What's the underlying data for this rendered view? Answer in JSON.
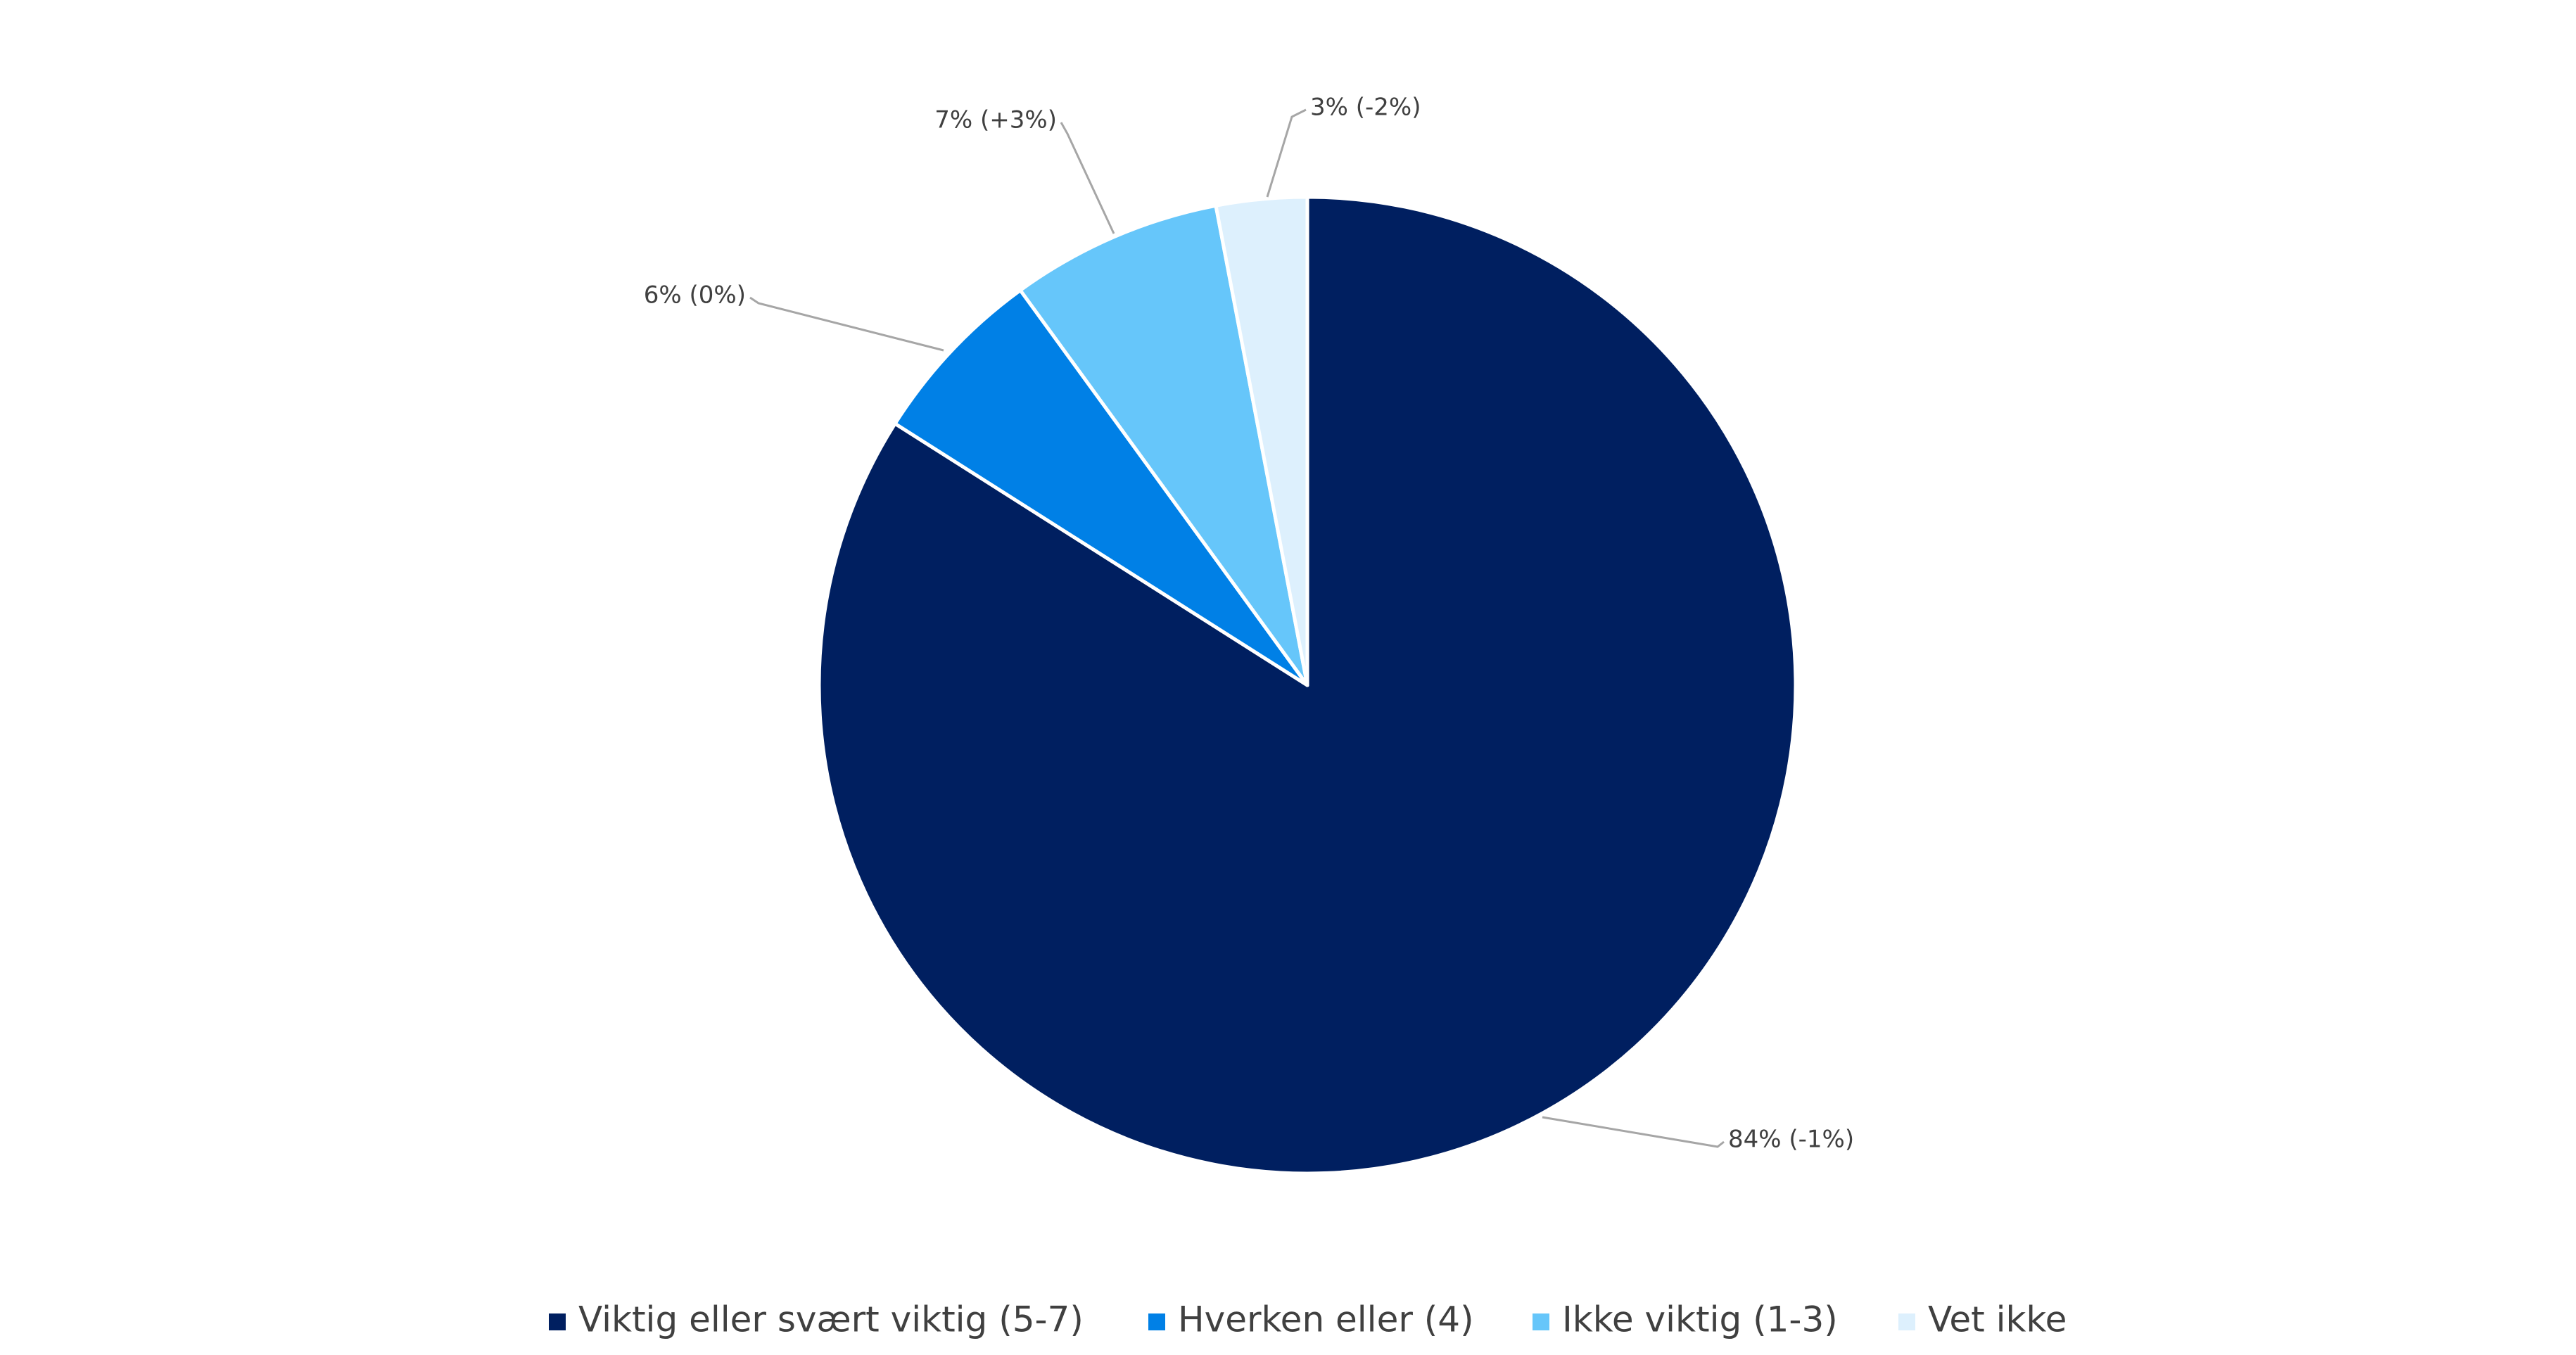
{
  "chart_data": {
    "type": "pie",
    "categories": [
      "Viktig eller svært viktig (5-7)",
      "Hverken eller (4)",
      "Ikke viktig (1-3)",
      "Vet ikke"
    ],
    "values": [
      84,
      6,
      7,
      3
    ],
    "value_labels": [
      "84% (-1%)",
      "6% (0%)",
      "7% (+3%)",
      "3% (-2%)"
    ],
    "colors": [
      "#001f60",
      "#0080e6",
      "#66c6fa",
      "#ddf0fd"
    ],
    "legend": "bottom"
  }
}
